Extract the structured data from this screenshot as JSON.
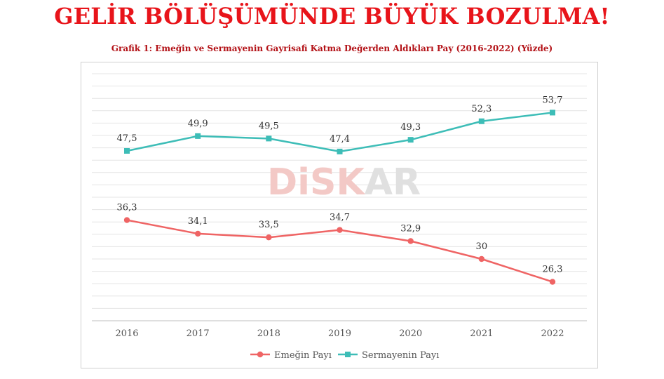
{
  "headline": "GELİR BÖLÜŞÜMÜNDE BÜYÜK BOZULMA!",
  "watermark": {
    "left": "DiSK",
    "right": "AR"
  },
  "colors": {
    "emek": "#ef6464",
    "sermaye": "#3dbdb7",
    "headline": "#e8141a",
    "subtitle": "#b31217"
  },
  "chart_data": {
    "type": "line",
    "title": "Grafik 1: Emeğin ve Sermayenin Gayrisafi Katma Değerden Aldıkları Pay (2016-2022) (Yüzde)",
    "categories": [
      "2016",
      "2017",
      "2018",
      "2019",
      "2020",
      "2021",
      "2022"
    ],
    "series": [
      {
        "name": "Emeğin Payı",
        "values": [
          36.3,
          34.1,
          33.5,
          34.7,
          32.9,
          30,
          26.3
        ],
        "labels": [
          "36,3",
          "34,1",
          "33,5",
          "34,7",
          "32,9",
          "30",
          "26,3"
        ],
        "marker": "circle",
        "color": "#ef6464"
      },
      {
        "name": "Sermayenin Payı",
        "values": [
          47.5,
          49.9,
          49.5,
          47.4,
          49.3,
          52.3,
          53.7
        ],
        "labels": [
          "47,5",
          "49,9",
          "49,5",
          "47,4",
          "49,3",
          "52,3",
          "53,7"
        ],
        "marker": "square",
        "color": "#3dbdb7"
      }
    ],
    "ylim": [
      20,
      60
    ],
    "grid": true,
    "yaxis_labels_shown": false,
    "legend": "bottom"
  }
}
